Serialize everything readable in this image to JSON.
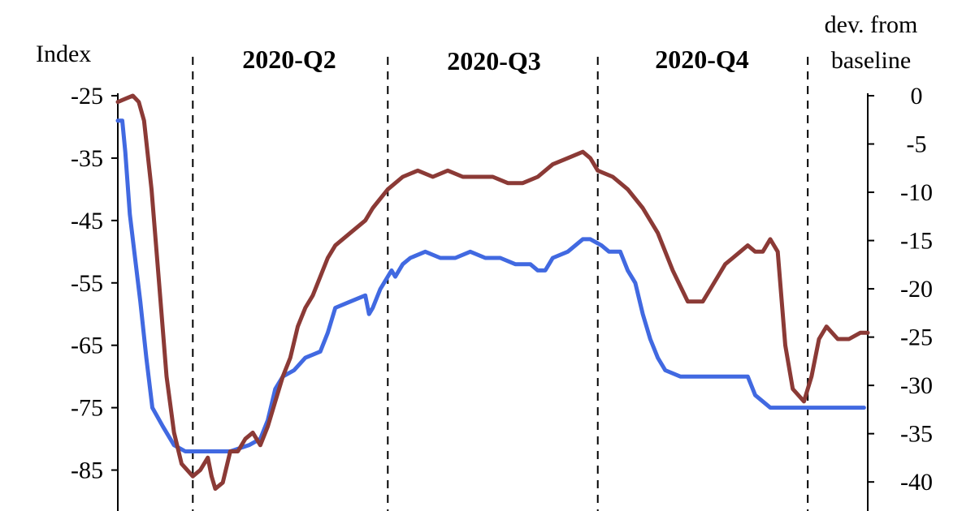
{
  "chart_data": {
    "type": "line",
    "left_axis": {
      "label": "Index",
      "ticks": [
        "-25",
        "-35",
        "-45",
        "-55",
        "-65",
        "-75",
        "-85"
      ],
      "ylim": [
        -90,
        -25
      ]
    },
    "right_axis": {
      "label_lines": [
        "dev. from",
        "baseline"
      ],
      "ticks": [
        "0",
        "-5",
        "-10",
        "-15",
        "-20",
        "-25",
        "-30",
        "-35",
        "-40"
      ],
      "ylim": [
        -42,
        0
      ]
    },
    "quarter_labels": [
      "2020-Q2",
      "2020-Q3",
      "2020-Q4"
    ],
    "quarter_dividers_x": [
      0.1,
      0.36,
      0.64,
      0.92
    ],
    "series": [
      {
        "color": "#4169e1",
        "axis": "left",
        "points": [
          [
            0,
            -29
          ],
          [
            0.006,
            -29
          ],
          [
            0.01,
            -34
          ],
          [
            0.016,
            -44
          ],
          [
            0.022,
            -50
          ],
          [
            0.03,
            -58
          ],
          [
            0.038,
            -67
          ],
          [
            0.046,
            -75
          ],
          [
            0.06,
            -78
          ],
          [
            0.075,
            -81
          ],
          [
            0.09,
            -82
          ],
          [
            0.1,
            -82
          ],
          [
            0.12,
            -82
          ],
          [
            0.15,
            -82
          ],
          [
            0.175,
            -81
          ],
          [
            0.19,
            -80
          ],
          [
            0.2,
            -77
          ],
          [
            0.21,
            -72
          ],
          [
            0.22,
            -70
          ],
          [
            0.235,
            -69
          ],
          [
            0.25,
            -67
          ],
          [
            0.27,
            -66
          ],
          [
            0.28,
            -63
          ],
          [
            0.29,
            -59
          ],
          [
            0.31,
            -58
          ],
          [
            0.33,
            -57
          ],
          [
            0.335,
            -60
          ],
          [
            0.34,
            -59
          ],
          [
            0.35,
            -56
          ],
          [
            0.365,
            -53
          ],
          [
            0.37,
            -54
          ],
          [
            0.375,
            -53
          ],
          [
            0.38,
            -52
          ],
          [
            0.39,
            -51
          ],
          [
            0.41,
            -50
          ],
          [
            0.43,
            -51
          ],
          [
            0.45,
            -51
          ],
          [
            0.47,
            -50
          ],
          [
            0.49,
            -51
          ],
          [
            0.51,
            -51
          ],
          [
            0.53,
            -52
          ],
          [
            0.55,
            -52
          ],
          [
            0.56,
            -53
          ],
          [
            0.57,
            -53
          ],
          [
            0.58,
            -51
          ],
          [
            0.6,
            -50
          ],
          [
            0.62,
            -48
          ],
          [
            0.63,
            -48
          ],
          [
            0.645,
            -49
          ],
          [
            0.655,
            -50
          ],
          [
            0.67,
            -50
          ],
          [
            0.68,
            -53
          ],
          [
            0.69,
            -55
          ],
          [
            0.7,
            -60
          ],
          [
            0.71,
            -64
          ],
          [
            0.72,
            -67
          ],
          [
            0.73,
            -69
          ],
          [
            0.75,
            -70
          ],
          [
            0.77,
            -70
          ],
          [
            0.79,
            -70
          ],
          [
            0.81,
            -70
          ],
          [
            0.83,
            -70
          ],
          [
            0.84,
            -70
          ],
          [
            0.85,
            -73
          ],
          [
            0.87,
            -75
          ],
          [
            0.89,
            -75
          ],
          [
            0.905,
            -75
          ],
          [
            0.915,
            -75
          ],
          [
            0.925,
            -75
          ],
          [
            0.935,
            -75
          ],
          [
            0.96,
            -75
          ],
          [
            0.98,
            -75
          ],
          [
            0.995,
            -75
          ]
        ]
      },
      {
        "color": "#8b3a36",
        "axis": "left",
        "points": [
          [
            0,
            -26
          ],
          [
            0.01,
            -25.5
          ],
          [
            0.02,
            -25
          ],
          [
            0.028,
            -26
          ],
          [
            0.035,
            -29
          ],
          [
            0.045,
            -40
          ],
          [
            0.055,
            -55
          ],
          [
            0.065,
            -70
          ],
          [
            0.075,
            -79
          ],
          [
            0.085,
            -84
          ],
          [
            0.1,
            -86
          ],
          [
            0.11,
            -85
          ],
          [
            0.12,
            -83
          ],
          [
            0.125,
            -86
          ],
          [
            0.13,
            -88
          ],
          [
            0.14,
            -87
          ],
          [
            0.15,
            -82
          ],
          [
            0.16,
            -82
          ],
          [
            0.17,
            -80
          ],
          [
            0.18,
            -79
          ],
          [
            0.19,
            -81
          ],
          [
            0.2,
            -78
          ],
          [
            0.21,
            -74
          ],
          [
            0.22,
            -70
          ],
          [
            0.23,
            -67
          ],
          [
            0.24,
            -62
          ],
          [
            0.25,
            -59
          ],
          [
            0.26,
            -57
          ],
          [
            0.27,
            -54
          ],
          [
            0.28,
            -51
          ],
          [
            0.29,
            -49
          ],
          [
            0.31,
            -47
          ],
          [
            0.33,
            -45
          ],
          [
            0.34,
            -43
          ],
          [
            0.36,
            -40
          ],
          [
            0.38,
            -38
          ],
          [
            0.4,
            -37
          ],
          [
            0.42,
            -38
          ],
          [
            0.44,
            -37
          ],
          [
            0.46,
            -38
          ],
          [
            0.48,
            -38
          ],
          [
            0.5,
            -38
          ],
          [
            0.52,
            -39
          ],
          [
            0.54,
            -39
          ],
          [
            0.56,
            -38
          ],
          [
            0.58,
            -36
          ],
          [
            0.6,
            -35
          ],
          [
            0.62,
            -34
          ],
          [
            0.63,
            -35
          ],
          [
            0.64,
            -37
          ],
          [
            0.66,
            -38
          ],
          [
            0.68,
            -40
          ],
          [
            0.7,
            -43
          ],
          [
            0.72,
            -47
          ],
          [
            0.74,
            -53
          ],
          [
            0.76,
            -58
          ],
          [
            0.78,
            -58
          ],
          [
            0.79,
            -56
          ],
          [
            0.8,
            -54
          ],
          [
            0.81,
            -52
          ],
          [
            0.82,
            -51
          ],
          [
            0.83,
            -50
          ],
          [
            0.84,
            -49
          ],
          [
            0.85,
            -50
          ],
          [
            0.86,
            -50
          ],
          [
            0.87,
            -48
          ],
          [
            0.88,
            -50
          ],
          [
            0.89,
            -65
          ],
          [
            0.9,
            -72
          ],
          [
            0.915,
            -74
          ],
          [
            0.925,
            -70
          ],
          [
            0.935,
            -64
          ],
          [
            0.945,
            -62
          ],
          [
            0.96,
            -64
          ],
          [
            0.975,
            -64
          ],
          [
            0.99,
            -63
          ],
          [
            1.0,
            -63
          ]
        ]
      }
    ]
  }
}
